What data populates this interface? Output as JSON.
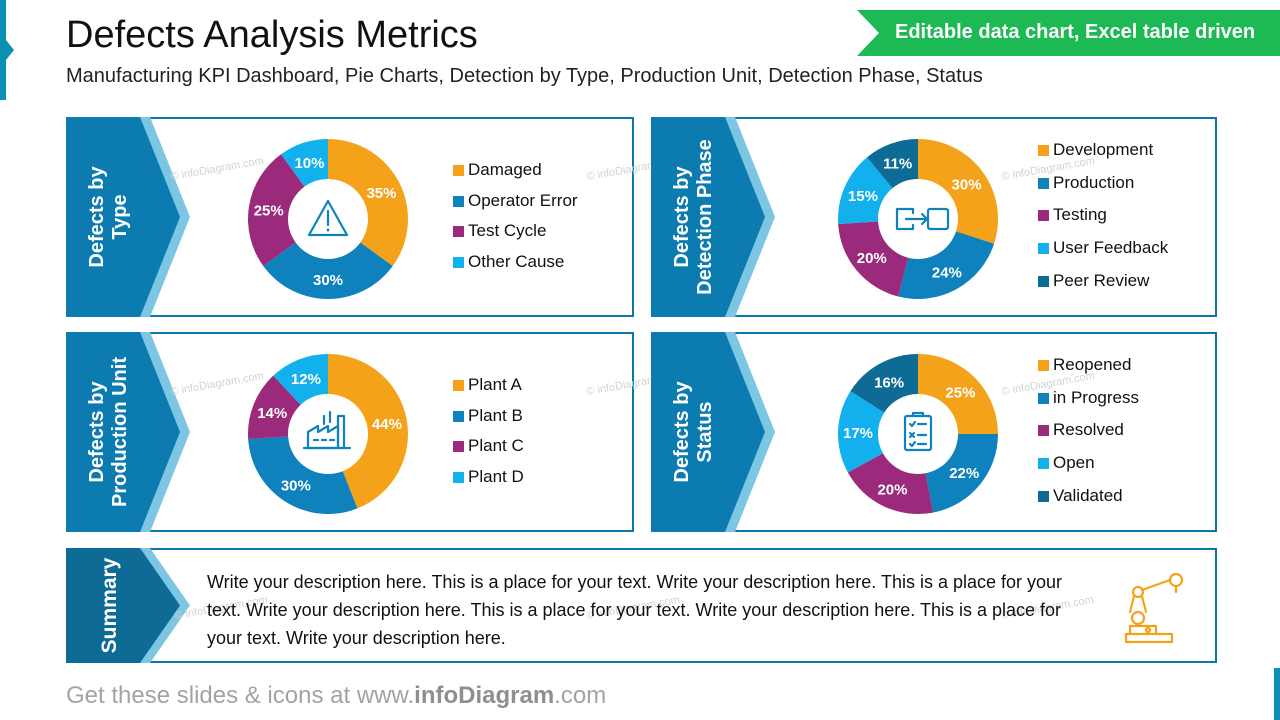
{
  "header": {
    "title": "Defects Analysis Metrics",
    "subtitle": "Manufacturing KPI Dashboard, Pie Charts, Detection by Type, Production Unit, Detection Phase, Status",
    "banner": "Editable data chart, Excel table driven"
  },
  "colors": {
    "panel_border": "#0b77a6",
    "tab_dark": "#0b7bb0",
    "tab_light": "#7cc6e4",
    "summary_tab": "#0d6b96",
    "banner_green": "#1db954"
  },
  "panels": [
    {
      "tab_line1": "Defects by",
      "tab_line2": "Type"
    },
    {
      "tab_line1": "Defects by",
      "tab_line2": "Detection Phase"
    },
    {
      "tab_line1": "Defects by",
      "tab_line2": "Production Unit"
    },
    {
      "tab_line1": "Defects by",
      "tab_line2": "Status"
    }
  ],
  "watermark": "© infoDiagram.com",
  "summary": {
    "tab_label": "Summary",
    "text": "Write your description here. This is a place for your text. Write your description here. This is a place for your text. Write your description here. This is a place for your text. Write your description here. This is a place for your text. Write your description here."
  },
  "footer": {
    "prefix": "Get these slides & icons at www.",
    "brand": "infoDiagram",
    "suffix": ".com"
  },
  "chart_data": [
    {
      "type": "pie",
      "donut": true,
      "center_icon": "warning-triangle-icon",
      "categories": [
        "Damaged",
        "Operator Error",
        "Test Cycle",
        "Other Cause"
      ],
      "values": [
        35,
        30,
        25,
        10
      ],
      "labels": [
        "35%",
        "30%",
        "25%",
        "10%"
      ],
      "colors": [
        "#f5a21b",
        "#0f82bd",
        "#9b2a7c",
        "#12b1ee"
      ],
      "legend": "right"
    },
    {
      "type": "pie",
      "donut": true,
      "center_icon": "transfer-icon",
      "categories": [
        "Development",
        "Production",
        "Testing",
        "User Feedback",
        "Peer Review"
      ],
      "values": [
        30,
        24,
        20,
        15,
        11
      ],
      "labels": [
        "30%",
        "24%",
        "20%",
        "15%",
        "11%"
      ],
      "colors": [
        "#f5a21b",
        "#0f82bd",
        "#9b2a7c",
        "#12b1ee",
        "#0d6b96"
      ],
      "legend": "right"
    },
    {
      "type": "pie",
      "donut": true,
      "center_icon": "factory-icon",
      "categories": [
        "Plant A",
        "Plant B",
        "Plant C",
        "Plant D"
      ],
      "values": [
        44,
        30,
        14,
        12
      ],
      "labels": [
        "44%",
        "30%",
        "14%",
        "12%"
      ],
      "colors": [
        "#f5a21b",
        "#0f82bd",
        "#9b2a7c",
        "#12b1ee"
      ],
      "legend": "right"
    },
    {
      "type": "pie",
      "donut": true,
      "center_icon": "checklist-icon",
      "categories": [
        "Reopened",
        "in Progress",
        "Resolved",
        "Open",
        "Validated"
      ],
      "values": [
        25,
        22,
        20,
        17,
        16
      ],
      "labels": [
        "25%",
        "22%",
        "20%",
        "17%",
        "16%"
      ],
      "colors": [
        "#f5a21b",
        "#0f82bd",
        "#9b2a7c",
        "#12b1ee",
        "#0d6b96"
      ],
      "legend": "right"
    }
  ]
}
